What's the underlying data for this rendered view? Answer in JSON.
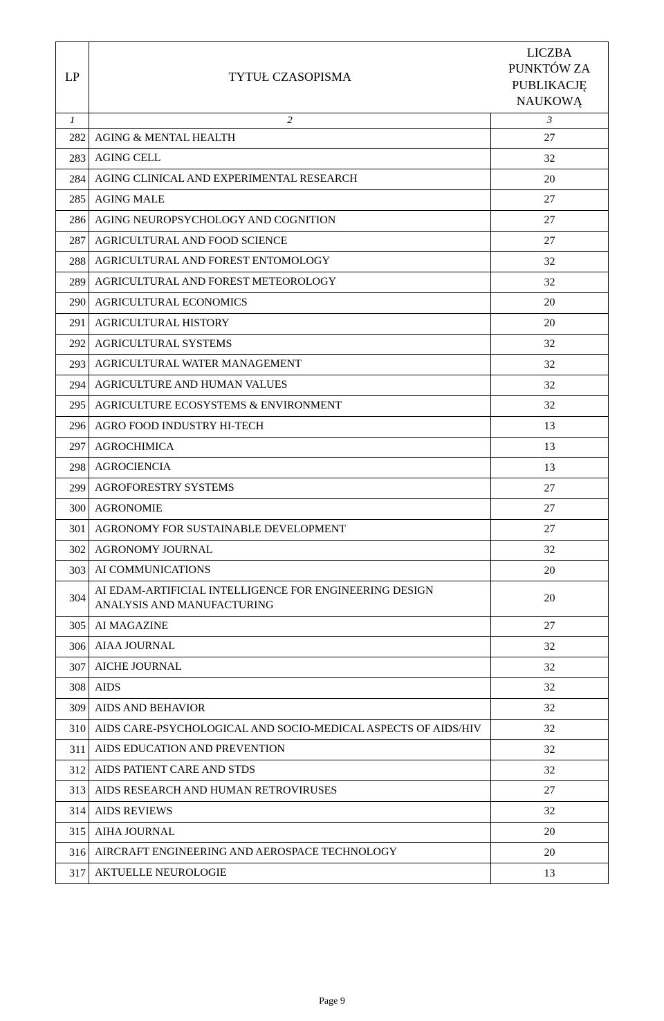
{
  "header": {
    "col_lp": "LP",
    "col_title": "TYTUŁ CZASOPISMA",
    "col_points": "LICZBA PUNKTÓW ZA PUBLIKACJĘ NAUKOWĄ"
  },
  "subheader": {
    "lp": "1",
    "title": "2",
    "points": "3"
  },
  "rows": [
    {
      "lp": "282",
      "title": "AGING & MENTAL HEALTH",
      "pts": "27"
    },
    {
      "lp": "283",
      "title": "AGING CELL",
      "pts": "32"
    },
    {
      "lp": "284",
      "title": "AGING CLINICAL AND EXPERIMENTAL RESEARCH",
      "pts": "20"
    },
    {
      "lp": "285",
      "title": "AGING MALE",
      "pts": "27"
    },
    {
      "lp": "286",
      "title": "AGING NEUROPSYCHOLOGY AND COGNITION",
      "pts": "27"
    },
    {
      "lp": "287",
      "title": "AGRICULTURAL AND FOOD SCIENCE",
      "pts": "27"
    },
    {
      "lp": "288",
      "title": "AGRICULTURAL AND FOREST ENTOMOLOGY",
      "pts": "32"
    },
    {
      "lp": "289",
      "title": "AGRICULTURAL AND FOREST METEOROLOGY",
      "pts": "32"
    },
    {
      "lp": "290",
      "title": "AGRICULTURAL ECONOMICS",
      "pts": "20"
    },
    {
      "lp": "291",
      "title": "AGRICULTURAL HISTORY",
      "pts": "20"
    },
    {
      "lp": "292",
      "title": "AGRICULTURAL SYSTEMS",
      "pts": "32"
    },
    {
      "lp": "293",
      "title": "AGRICULTURAL WATER MANAGEMENT",
      "pts": "32"
    },
    {
      "lp": "294",
      "title": "AGRICULTURE AND HUMAN VALUES",
      "pts": "32"
    },
    {
      "lp": "295",
      "title": "AGRICULTURE ECOSYSTEMS & ENVIRONMENT",
      "pts": "32"
    },
    {
      "lp": "296",
      "title": "AGRO FOOD INDUSTRY HI-TECH",
      "pts": "13"
    },
    {
      "lp": "297",
      "title": "AGROCHIMICA",
      "pts": "13"
    },
    {
      "lp": "298",
      "title": "AGROCIENCIA",
      "pts": "13"
    },
    {
      "lp": "299",
      "title": "AGROFORESTRY SYSTEMS",
      "pts": "27"
    },
    {
      "lp": "300",
      "title": "AGRONOMIE",
      "pts": "27"
    },
    {
      "lp": "301",
      "title": "AGRONOMY FOR SUSTAINABLE DEVELOPMENT",
      "pts": "27"
    },
    {
      "lp": "302",
      "title": "AGRONOMY JOURNAL",
      "pts": "32"
    },
    {
      "lp": "303",
      "title": "AI COMMUNICATIONS",
      "pts": "20"
    },
    {
      "lp": "304",
      "title": "AI EDAM-ARTIFICIAL INTELLIGENCE FOR ENGINEERING DESIGN ANALYSIS AND MANUFACTURING",
      "pts": "20"
    },
    {
      "lp": "305",
      "title": "AI MAGAZINE",
      "pts": "27"
    },
    {
      "lp": "306",
      "title": "AIAA JOURNAL",
      "pts": "32"
    },
    {
      "lp": "307",
      "title": "AICHE JOURNAL",
      "pts": "32"
    },
    {
      "lp": "308",
      "title": "AIDS",
      "pts": "32"
    },
    {
      "lp": "309",
      "title": "AIDS AND BEHAVIOR",
      "pts": "32"
    },
    {
      "lp": "310",
      "title": "AIDS CARE-PSYCHOLOGICAL AND SOCIO-MEDICAL ASPECTS OF AIDS/HIV",
      "pts": "32"
    },
    {
      "lp": "311",
      "title": "AIDS EDUCATION AND PREVENTION",
      "pts": "32"
    },
    {
      "lp": "312",
      "title": "AIDS PATIENT CARE AND STDS",
      "pts": "32"
    },
    {
      "lp": "313",
      "title": "AIDS RESEARCH AND HUMAN RETROVIRUSES",
      "pts": "27"
    },
    {
      "lp": "314",
      "title": "AIDS REVIEWS",
      "pts": "32"
    },
    {
      "lp": "315",
      "title": "AIHA JOURNAL",
      "pts": "20"
    },
    {
      "lp": "316",
      "title": "AIRCRAFT ENGINEERING AND AEROSPACE TECHNOLOGY",
      "pts": "20"
    },
    {
      "lp": "317",
      "title": "AKTUELLE NEUROLOGIE",
      "pts": "13"
    }
  ],
  "footer": "Page 9",
  "table_style": {
    "border_color": "#000000",
    "background_color": "#ffffff",
    "text_color": "#000000",
    "font_family": "Times New Roman",
    "header_fontsize": 18,
    "body_fontsize": 16,
    "subheader_fontsize": 15,
    "footer_fontsize": 14,
    "col_widths": {
      "lp": 48,
      "points": 170
    }
  }
}
